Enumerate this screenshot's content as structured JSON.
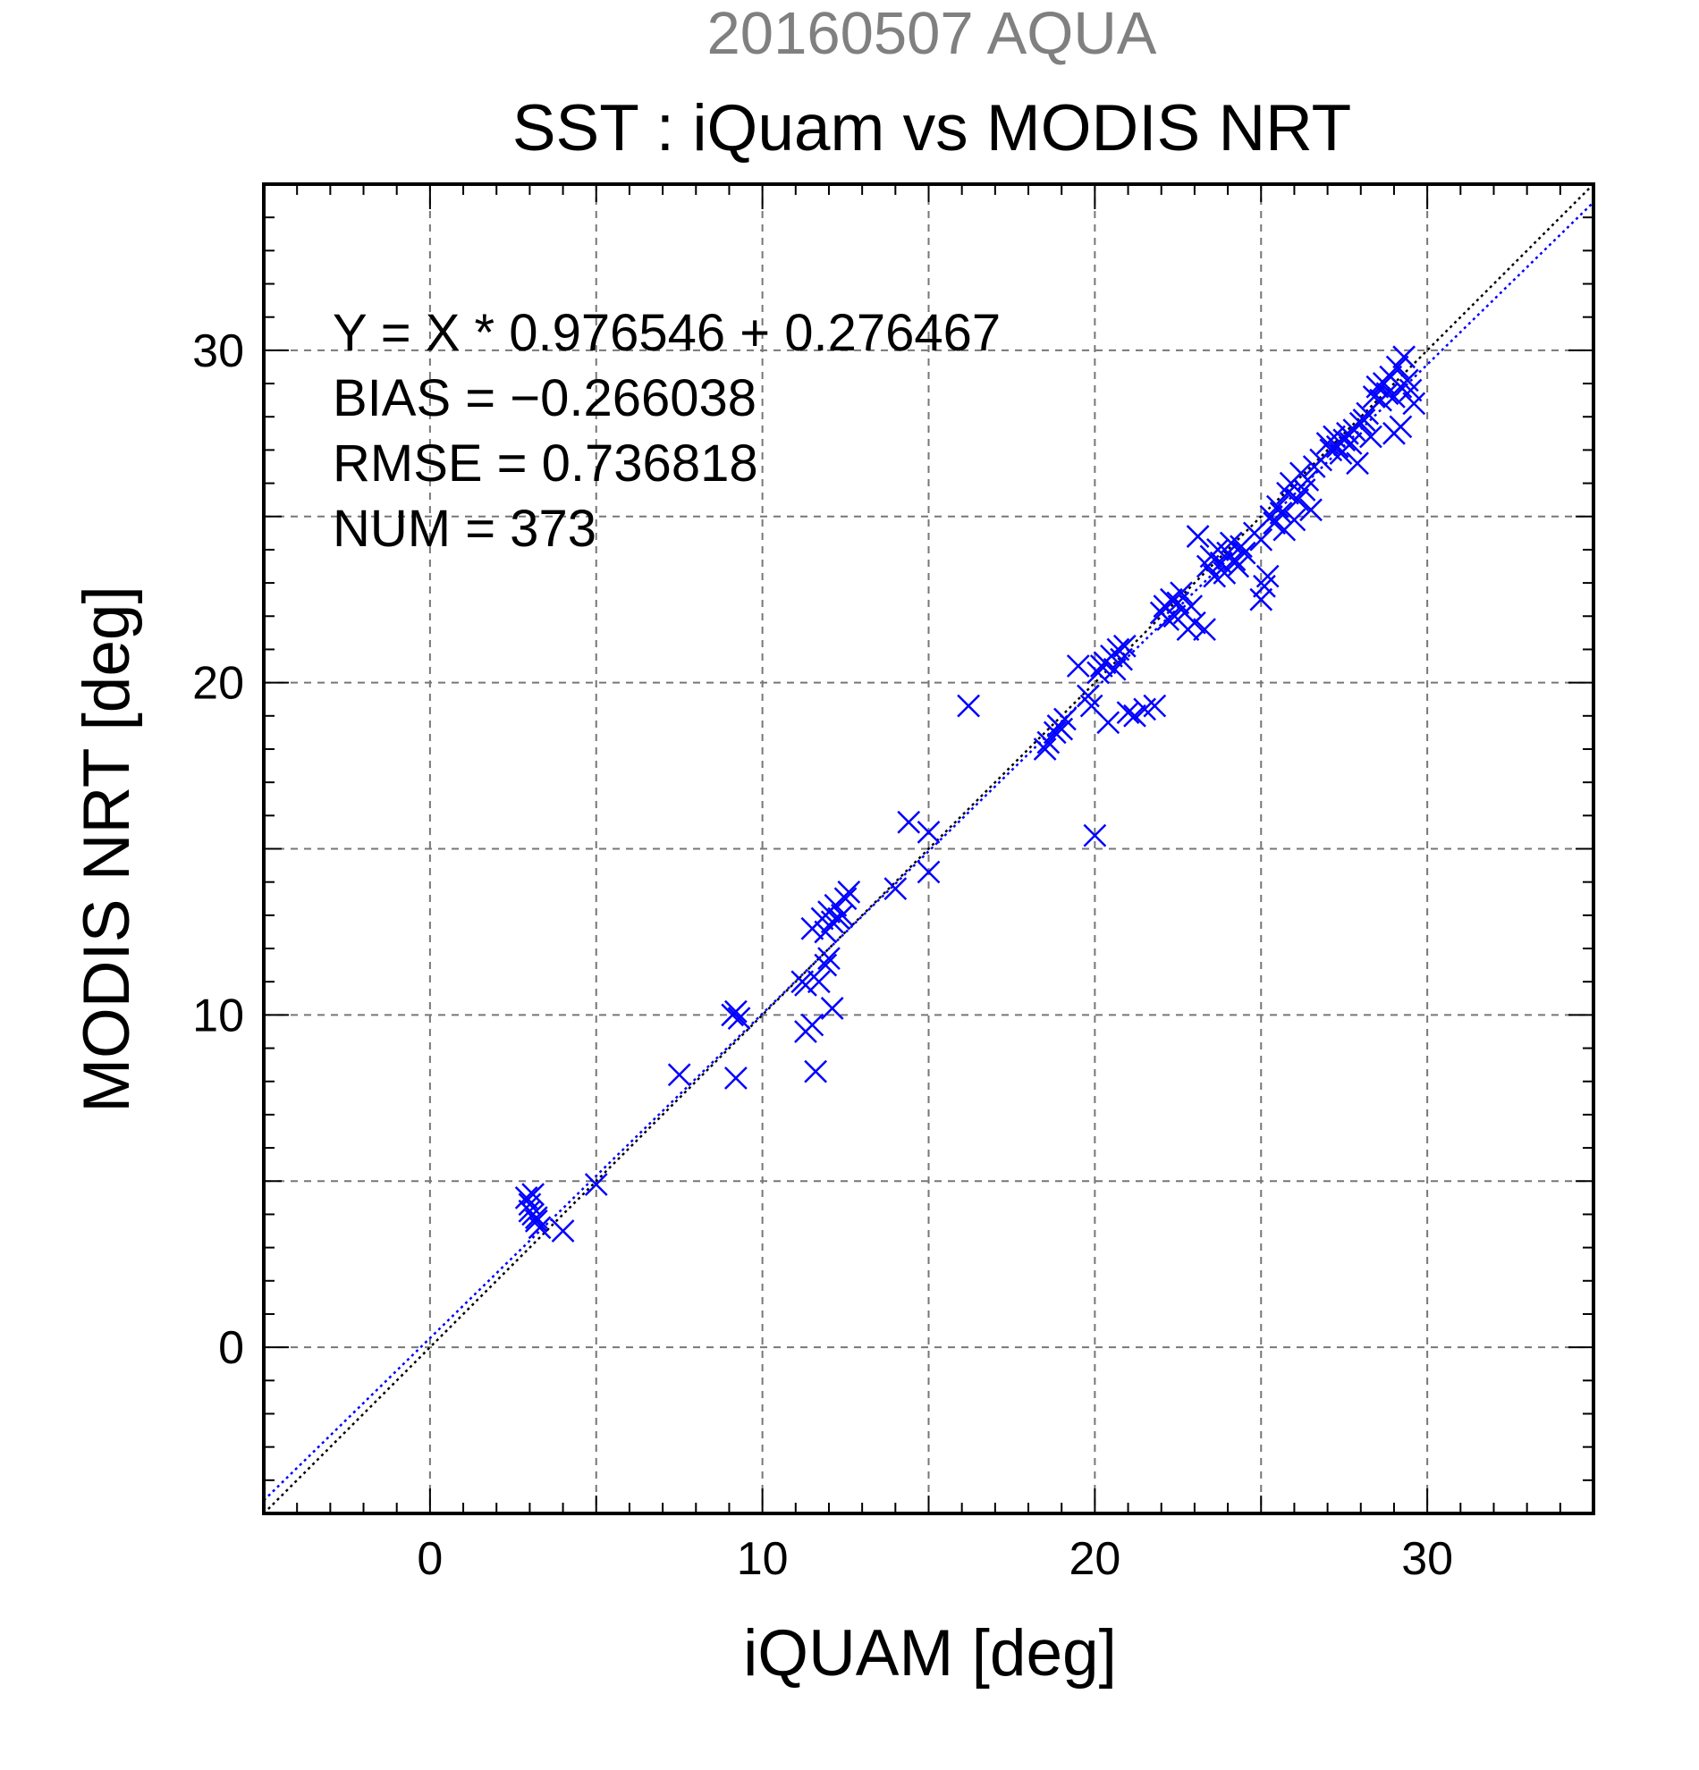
{
  "chart_data": {
    "type": "scatter",
    "suptitle": "20160507 AQUA",
    "title": "SST : iQuam vs MODIS NRT",
    "xlabel": "iQUAM [deg]",
    "ylabel": "MODIS NRT [deg]",
    "xlim": [
      -5,
      35
    ],
    "ylim": [
      -5,
      35
    ],
    "major_ticks": [
      0,
      10,
      20,
      30
    ],
    "grid_step": 5,
    "grid": true,
    "annotations": [
      "Y = X * 0.976546 + 0.276467",
      "BIAS = −0.266038",
      "RMSE = 0.736818",
      "NUM = 373"
    ],
    "fit": {
      "slope": 0.976546,
      "intercept": 0.276467
    },
    "reference_line": "y = x",
    "colors": {
      "points": "#0000ff",
      "fit_line": "#0000ff",
      "reference_line": "#000000",
      "grid": "#777777",
      "suptitle": "#808080"
    },
    "marker": "x",
    "points": [
      [
        2.9,
        4.5
      ],
      [
        3.0,
        4.3
      ],
      [
        3.1,
        4.6
      ],
      [
        3.0,
        4.1
      ],
      [
        3.2,
        3.9
      ],
      [
        3.3,
        3.6
      ],
      [
        3.2,
        3.8
      ],
      [
        3.1,
        4.0
      ],
      [
        4.0,
        3.5
      ],
      [
        5.0,
        4.9
      ],
      [
        7.5,
        8.2
      ],
      [
        9.1,
        10.0
      ],
      [
        9.2,
        10.1
      ],
      [
        9.3,
        9.9
      ],
      [
        9.2,
        8.1
      ],
      [
        11.2,
        11.0
      ],
      [
        11.3,
        10.9
      ],
      [
        11.3,
        9.5
      ],
      [
        11.5,
        9.7
      ],
      [
        11.6,
        8.3
      ],
      [
        11.7,
        11.0
      ],
      [
        11.5,
        12.6
      ],
      [
        11.8,
        12.9
      ],
      [
        11.9,
        12.5
      ],
      [
        12.0,
        13.1
      ],
      [
        12.1,
        12.8
      ],
      [
        12.2,
        13.3
      ],
      [
        12.3,
        12.9
      ],
      [
        12.4,
        13.0
      ],
      [
        12.5,
        13.5
      ],
      [
        12.0,
        11.7
      ],
      [
        11.9,
        11.5
      ],
      [
        12.1,
        10.2
      ],
      [
        12.6,
        13.7
      ],
      [
        14.0,
        13.8
      ],
      [
        14.4,
        15.8
      ],
      [
        15.0,
        15.5
      ],
      [
        15.0,
        14.3
      ],
      [
        16.2,
        19.3
      ],
      [
        18.5,
        18.0
      ],
      [
        18.6,
        18.2
      ],
      [
        18.8,
        18.5
      ],
      [
        18.9,
        18.7
      ],
      [
        19.0,
        18.6
      ],
      [
        19.1,
        18.9
      ],
      [
        19.5,
        20.5
      ],
      [
        19.8,
        19.6
      ],
      [
        19.9,
        19.3
      ],
      [
        20.0,
        15.4
      ],
      [
        20.1,
        20.3
      ],
      [
        20.2,
        20.5
      ],
      [
        20.3,
        20.6
      ],
      [
        20.4,
        18.8
      ],
      [
        20.5,
        20.8
      ],
      [
        20.6,
        20.4
      ],
      [
        20.7,
        21.0
      ],
      [
        20.8,
        20.7
      ],
      [
        20.9,
        21.1
      ],
      [
        21.0,
        19.1
      ],
      [
        21.2,
        19.0
      ],
      [
        21.5,
        19.2
      ],
      [
        21.8,
        19.3
      ],
      [
        22.0,
        22.1
      ],
      [
        22.1,
        22.3
      ],
      [
        22.2,
        21.9
      ],
      [
        22.3,
        22.5
      ],
      [
        22.4,
        22.0
      ],
      [
        22.5,
        22.4
      ],
      [
        22.6,
        22.7
      ],
      [
        22.7,
        22.1
      ],
      [
        22.8,
        21.6
      ],
      [
        22.9,
        22.3
      ],
      [
        23.0,
        21.8
      ],
      [
        23.1,
        24.4
      ],
      [
        23.3,
        21.6
      ],
      [
        23.4,
        23.5
      ],
      [
        23.5,
        23.8
      ],
      [
        23.6,
        23.2
      ],
      [
        23.7,
        24.0
      ],
      [
        23.8,
        23.6
      ],
      [
        23.9,
        23.3
      ],
      [
        24.0,
        23.9
      ],
      [
        24.1,
        24.2
      ],
      [
        24.2,
        23.7
      ],
      [
        24.3,
        23.5
      ],
      [
        24.4,
        24.1
      ],
      [
        24.5,
        23.9
      ],
      [
        24.8,
        24.5
      ],
      [
        25.0,
        24.3
      ],
      [
        25.0,
        22.5
      ],
      [
        25.1,
        22.9
      ],
      [
        25.2,
        23.2
      ],
      [
        25.3,
        25.0
      ],
      [
        25.4,
        24.8
      ],
      [
        25.5,
        25.3
      ],
      [
        25.6,
        25.1
      ],
      [
        25.7,
        24.6
      ],
      [
        25.8,
        25.7
      ],
      [
        25.9,
        26.0
      ],
      [
        26.0,
        24.9
      ],
      [
        26.1,
        25.5
      ],
      [
        26.2,
        26.3
      ],
      [
        26.3,
        25.8
      ],
      [
        26.4,
        26.1
      ],
      [
        26.5,
        25.2
      ],
      [
        26.6,
        26.5
      ],
      [
        26.8,
        26.7
      ],
      [
        27.0,
        27.2
      ],
      [
        27.1,
        27.0
      ],
      [
        27.2,
        27.4
      ],
      [
        27.3,
        27.1
      ],
      [
        27.4,
        26.9
      ],
      [
        27.5,
        27.3
      ],
      [
        27.6,
        27.5
      ],
      [
        27.7,
        27.2
      ],
      [
        27.8,
        27.6
      ],
      [
        27.9,
        26.6
      ],
      [
        28.0,
        27.8
      ],
      [
        28.1,
        27.9
      ],
      [
        28.2,
        28.1
      ],
      [
        28.3,
        27.4
      ],
      [
        28.4,
        28.6
      ],
      [
        28.5,
        28.9
      ],
      [
        28.6,
        28.5
      ],
      [
        28.7,
        29.0
      ],
      [
        28.8,
        28.7
      ],
      [
        28.9,
        29.2
      ],
      [
        29.0,
        28.6
      ],
      [
        29.1,
        29.5
      ],
      [
        29.2,
        28.9
      ],
      [
        29.3,
        29.8
      ],
      [
        29.4,
        29.1
      ],
      [
        29.5,
        28.8
      ],
      [
        29.6,
        28.4
      ],
      [
        29.2,
        27.7
      ],
      [
        29.0,
        27.5
      ]
    ]
  }
}
